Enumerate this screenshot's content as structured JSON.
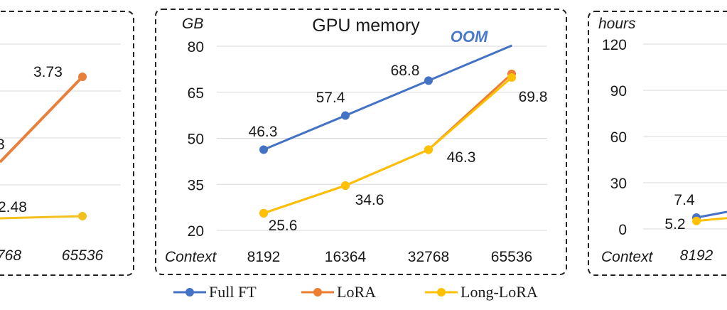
{
  "chart_data": [
    {
      "type": "line",
      "title": "",
      "ylabel": "",
      "xlabel": "",
      "categories": [
        "65536"
      ],
      "x_tick_labels_visible": [
        "768",
        "65536"
      ],
      "y_range_note": "axis cropped",
      "series": [
        {
          "name": "LoRA",
          "color": "#e8803c",
          "values": [
            3.73
          ]
        },
        {
          "name": "Long-LoRA",
          "color": "#f4c01e",
          "values": [
            null
          ]
        }
      ],
      "data_labels": [
        "3.73",
        "3",
        "2.48"
      ]
    },
    {
      "type": "line",
      "title": "GPU memory",
      "ylabel": "GB",
      "xlabel": "Context",
      "categories": [
        "8192",
        "16364",
        "32768",
        "65536"
      ],
      "y_ticks": [
        20,
        35,
        50,
        65,
        80
      ],
      "ylim": [
        20,
        80
      ],
      "annotation": "OOM",
      "series": [
        {
          "name": "Full FT",
          "color": "#4472c4",
          "values": [
            46.3,
            57.4,
            68.8,
            null
          ]
        },
        {
          "name": "LoRA",
          "color": "#ed7d31",
          "values": [
            25.6,
            34.6,
            46.3,
            71.0
          ]
        },
        {
          "name": "Long-LoRA",
          "color": "#ffc000",
          "values": [
            25.6,
            34.6,
            46.3,
            69.8
          ]
        }
      ],
      "data_labels": {
        "full_ft": [
          "46.3",
          "57.4",
          "68.8"
        ],
        "long_lora": [
          "25.6",
          "34.6",
          "46.3",
          "69.8"
        ]
      }
    },
    {
      "type": "line",
      "title": "",
      "ylabel": "hours",
      "xlabel": "Context",
      "categories": [
        "8192"
      ],
      "y_ticks": [
        0,
        30,
        60,
        90,
        120
      ],
      "ylim": [
        0,
        120
      ],
      "series": [
        {
          "name": "Full FT",
          "color": "#4472c4",
          "values": [
            7.4
          ]
        },
        {
          "name": "Long-LoRA",
          "color": "#ffc000",
          "values": [
            5.2
          ]
        }
      ],
      "data_labels": [
        "7.4",
        "5.2"
      ]
    }
  ],
  "legend": {
    "items": [
      {
        "label": "Full FT",
        "color": "#4472c4"
      },
      {
        "label": "LoRA",
        "color": "#ed7d31"
      },
      {
        "label": "Long-LoRA",
        "color": "#ffc000"
      }
    ]
  }
}
